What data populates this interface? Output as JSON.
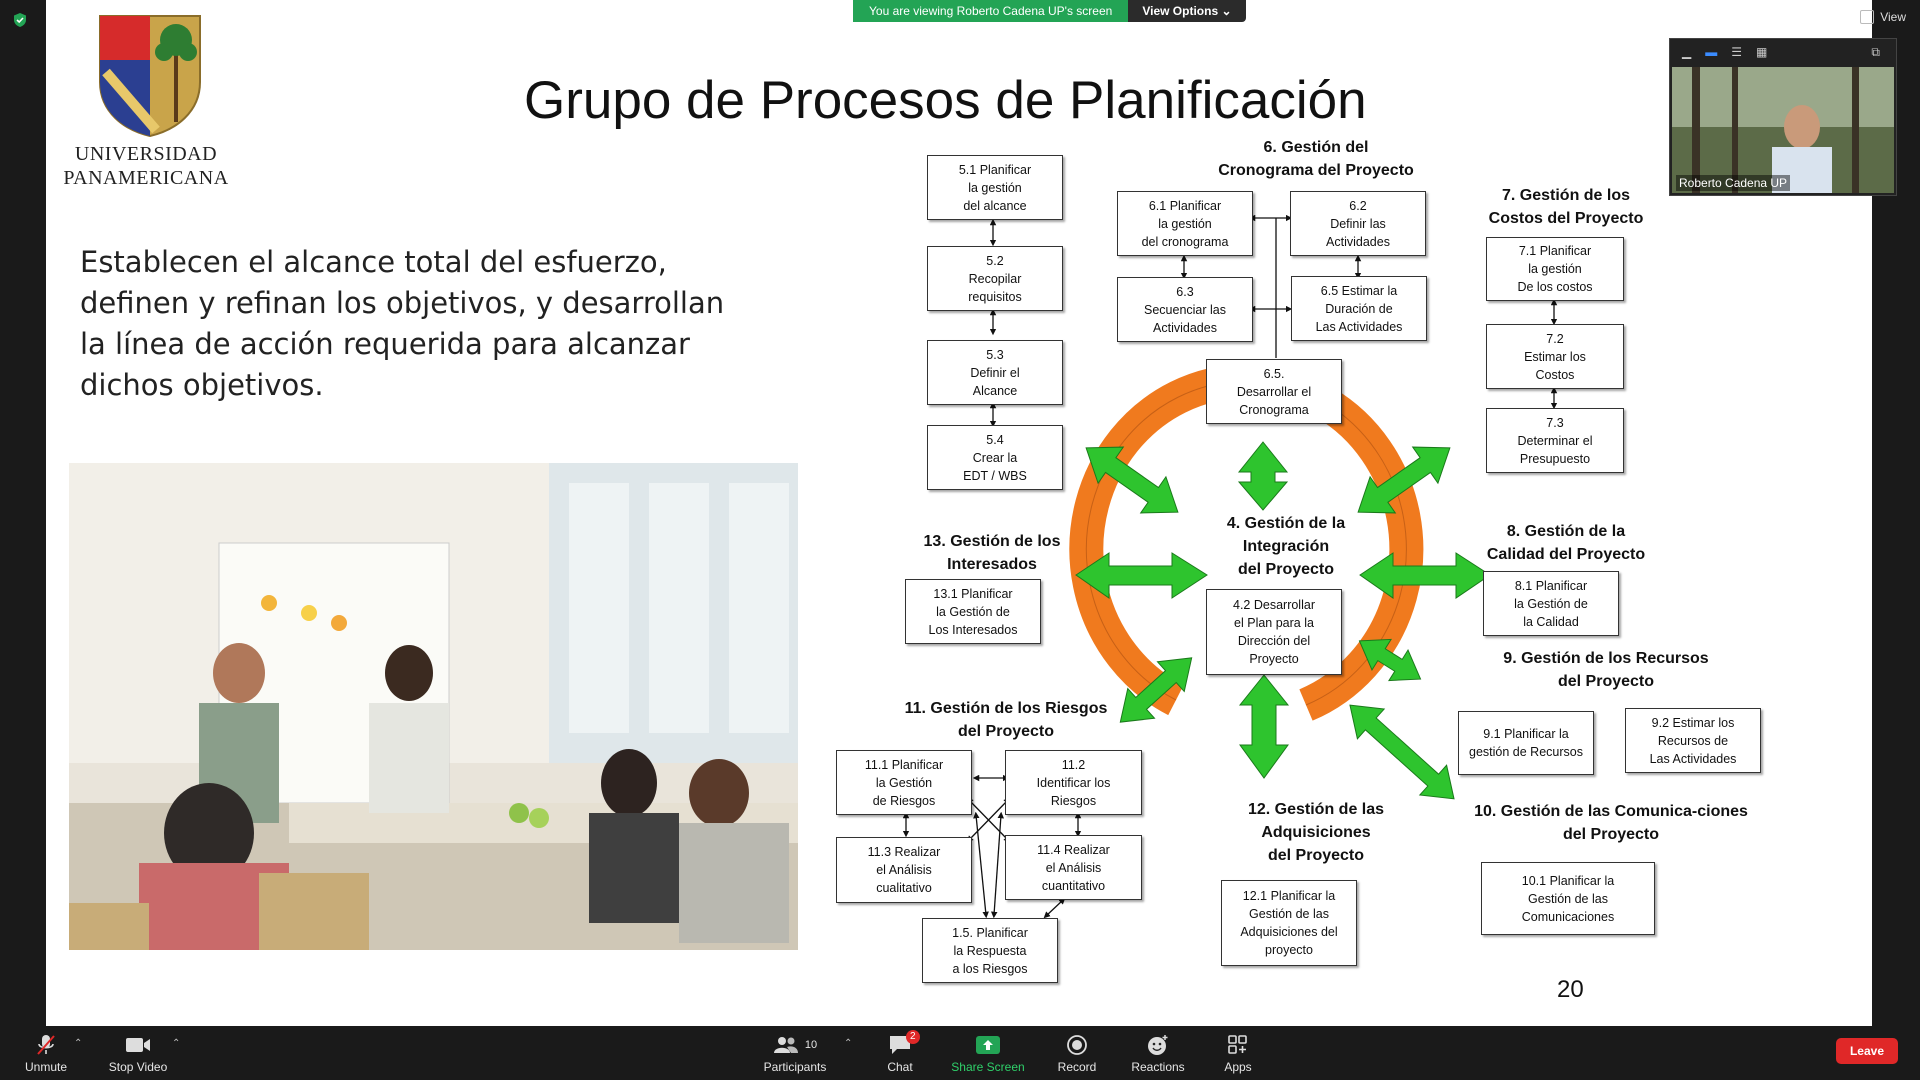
{
  "meeting": {
    "viewing_banner": "You are viewing Roberto Cadena UP's screen",
    "view_options_label": "View Options",
    "view_label": "View",
    "self_view_name": "Roberto Cadena UP"
  },
  "slide": {
    "university_line1": "UNIVERSIDAD",
    "university_line2": "PANAMERICANA",
    "title": "Grupo de Procesos de Planificación",
    "lead_text": "Establecen el alcance total del esfuerzo, definen y refinan los objetivos, y desarrollan la línea de acción requerida para alcanzar dichos objetivos.",
    "page_number": "20",
    "headings": {
      "h6": "6. Gestión del\nCronograma del Proyecto",
      "h7": "7. Gestión de los\nCostos del Proyecto",
      "h13": "13. Gestión de los\nInteresados",
      "h4": "4. Gestión de la\nIntegración\ndel Proyecto",
      "h8": "8. Gestión de la\nCalidad del Proyecto",
      "h9": "9. Gestión de los Recursos\ndel Proyecto",
      "h11": "11. Gestión de los Riesgos\ndel Proyecto",
      "h12": "12. Gestión de las\nAdquisiciones\ndel Proyecto",
      "h10": "10. Gestión de las Comunica-ciones\ndel Proyecto"
    },
    "boxes": {
      "b51": "5.1 Planificar\nla gestión\ndel alcance",
      "b52": "5.2\nRecopilar\nrequisitos",
      "b53": "5.3\nDefinir el\nAlcance",
      "b54": "5.4\nCrear la\nEDT / WBS",
      "b61": "6.1 Planificar\nla gestión\ndel cronograma",
      "b62": "6.2\nDefinir las\nActividades",
      "b63": "6.3\nSecuenciar las\nActividades",
      "b65": "6.5 Estimar la\nDuración de\nLas Actividades",
      "b66": "6.5.\nDesarrollar el\nCronograma",
      "b71": "7.1 Planificar\nla gestión\nDe los costos",
      "b72": "7.2\nEstimar los\nCostos",
      "b73": "7.3\nDeterminar el\nPresupuesto",
      "b131": "13.1 Planificar\nla Gestión de\nLos Interesados",
      "b42": "4.2 Desarrollar\nel  Plan para la\nDirección del\nProyecto",
      "b81": "8.1 Planificar\nla Gestión de\nla Calidad",
      "b91": "9.1 Planificar la\ngestión de Recursos",
      "b92": "9.2 Estimar los\nRecursos de\nLas Actividades",
      "b111": "11.1 Planificar\nla Gestión\nde Riesgos",
      "b112": "11.2\nIdentificar los\nRiesgos",
      "b113": "11.3 Realizar\nel  Análisis\ncualitativo",
      "b114": "11.4 Realizar\nel Análisis\ncuantitativo",
      "b115": "1.5. Planificar\nla Respuesta\na los Riesgos",
      "b121": "12.1 Planificar la\nGestión de las\nAdquisiciones del\nproyecto",
      "b101": "10.1 Planificar la\nGestión de las\nComunicaciones"
    }
  },
  "toolbar": {
    "unmute": "Unmute",
    "stop_video": "Stop Video",
    "participants": "Participants",
    "participants_count": "10",
    "chat": "Chat",
    "chat_badge": "2",
    "share_screen": "Share Screen",
    "record": "Record",
    "reactions": "Reactions",
    "apps": "Apps",
    "leave": "Leave"
  },
  "colors": {
    "share_green": "#23a455",
    "leave_red": "#e02828",
    "ring_orange": "#f07a1e",
    "arrow_green": "#2ec42e"
  }
}
